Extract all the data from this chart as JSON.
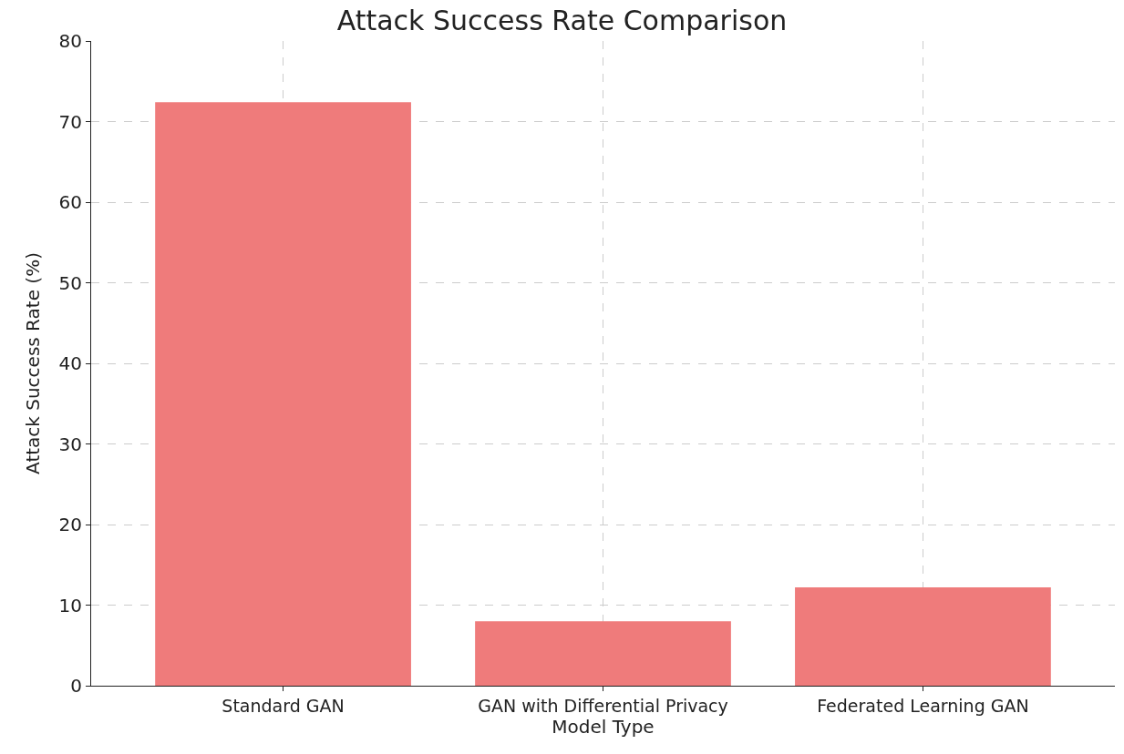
{
  "chart_data": {
    "type": "bar",
    "title": "Attack Success Rate Comparison",
    "xlabel": "Model Type",
    "ylabel": "Attack Success Rate (%)",
    "categories": [
      "Standard GAN",
      "GAN with Differential Privacy",
      "Federated Learning GAN"
    ],
    "values": [
      72.4,
      8.0,
      12.2
    ],
    "color": "#ef7b7b",
    "ylim": [
      0,
      80
    ],
    "yticks": [
      0,
      10,
      20,
      30,
      40,
      50,
      60,
      70,
      80
    ],
    "grid": true
  }
}
